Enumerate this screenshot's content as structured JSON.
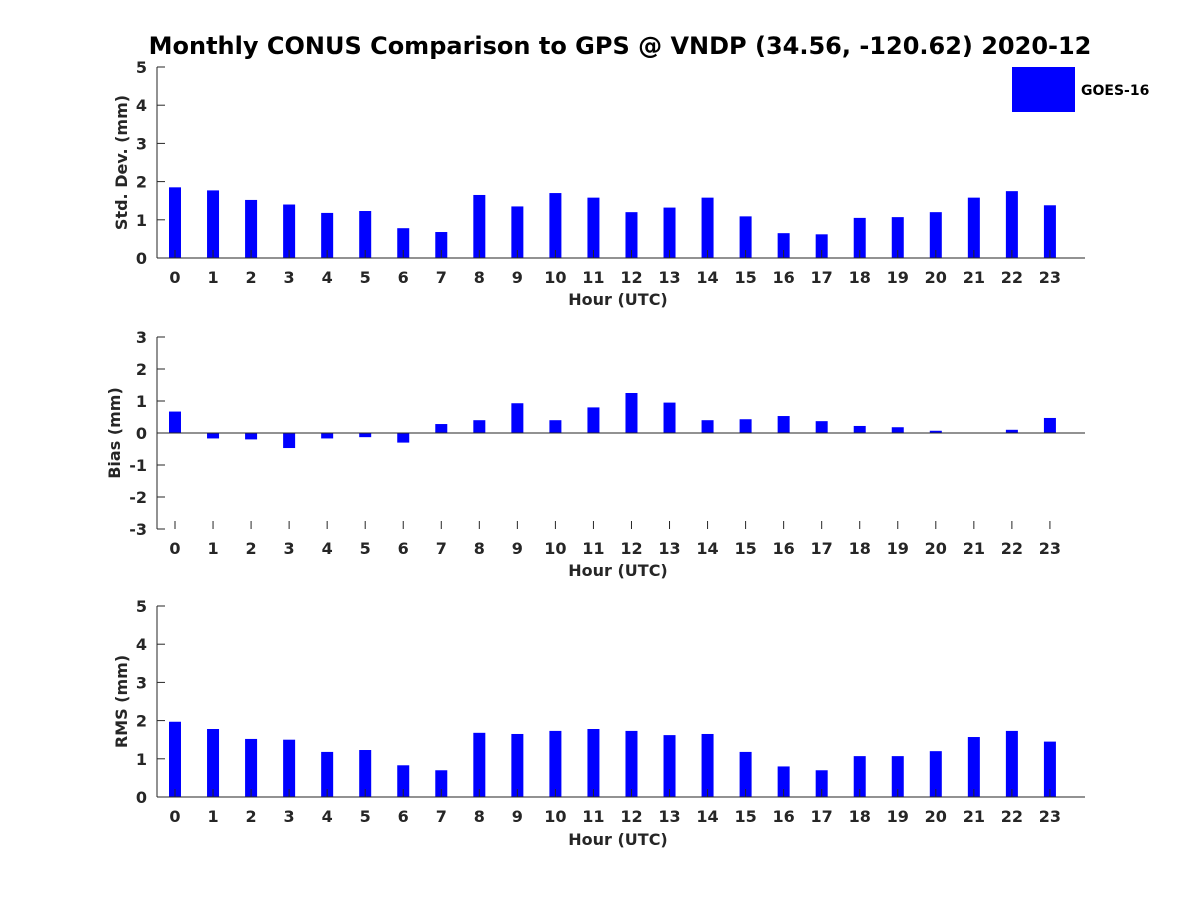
{
  "title": "Monthly CONUS Comparison to GPS @ VNDP (34.56, -120.62) 2020-12",
  "legend": {
    "label": "GOES-16",
    "color": "#0000ff",
    "placement": "top-right"
  },
  "chart_data": [
    {
      "type": "bar",
      "title": "Monthly CONUS Comparison to GPS @ VNDP (34.56, -120.62) 2020-12",
      "xlabel": "Hour (UTC)",
      "ylabel": "Std. Dev. (mm)",
      "ylim": [
        0,
        5
      ],
      "yticks": [
        "0",
        "1",
        "2",
        "3",
        "4",
        "5"
      ],
      "categories": [
        "0",
        "1",
        "2",
        "3",
        "4",
        "5",
        "6",
        "7",
        "8",
        "9",
        "10",
        "11",
        "12",
        "13",
        "14",
        "15",
        "16",
        "17",
        "18",
        "19",
        "20",
        "21",
        "22",
        "23"
      ],
      "series": [
        {
          "name": "GOES-16",
          "color": "#0000ff",
          "values": [
            1.85,
            1.77,
            1.52,
            1.4,
            1.18,
            1.23,
            0.78,
            0.68,
            1.65,
            1.35,
            1.7,
            1.58,
            1.2,
            1.32,
            1.58,
            1.09,
            0.65,
            0.62,
            1.05,
            1.07,
            1.2,
            1.58,
            1.75,
            1.38
          ]
        }
      ]
    },
    {
      "type": "bar",
      "title": "",
      "xlabel": "Hour (UTC)",
      "ylabel": "Bias (mm)",
      "ylim": [
        -3,
        3
      ],
      "yticks": [
        "-3",
        "-2",
        "-1",
        "0",
        "1",
        "2",
        "3"
      ],
      "categories": [
        "0",
        "1",
        "2",
        "3",
        "4",
        "5",
        "6",
        "7",
        "8",
        "9",
        "10",
        "11",
        "12",
        "13",
        "14",
        "15",
        "16",
        "17",
        "18",
        "19",
        "20",
        "21",
        "22",
        "23"
      ],
      "series": [
        {
          "name": "GOES-16",
          "color": "#0000ff",
          "values": [
            0.67,
            -0.17,
            -0.2,
            -0.47,
            -0.17,
            -0.13,
            -0.3,
            0.28,
            0.4,
            0.93,
            0.4,
            0.8,
            1.25,
            0.95,
            0.4,
            0.43,
            0.53,
            0.37,
            0.22,
            0.18,
            0.07,
            0.0,
            0.1,
            0.47
          ]
        }
      ]
    },
    {
      "type": "bar",
      "title": "",
      "xlabel": "Hour (UTC)",
      "ylabel": "RMS (mm)",
      "ylim": [
        0,
        5
      ],
      "yticks": [
        "0",
        "1",
        "2",
        "3",
        "4",
        "5"
      ],
      "categories": [
        "0",
        "1",
        "2",
        "3",
        "4",
        "5",
        "6",
        "7",
        "8",
        "9",
        "10",
        "11",
        "12",
        "13",
        "14",
        "15",
        "16",
        "17",
        "18",
        "19",
        "20",
        "21",
        "22",
        "23"
      ],
      "series": [
        {
          "name": "GOES-16",
          "color": "#0000ff",
          "values": [
            1.97,
            1.78,
            1.52,
            1.5,
            1.18,
            1.23,
            0.83,
            0.7,
            1.68,
            1.65,
            1.73,
            1.78,
            1.73,
            1.62,
            1.65,
            1.18,
            0.8,
            0.7,
            1.07,
            1.07,
            1.2,
            1.57,
            1.73,
            1.45
          ]
        }
      ]
    }
  ]
}
